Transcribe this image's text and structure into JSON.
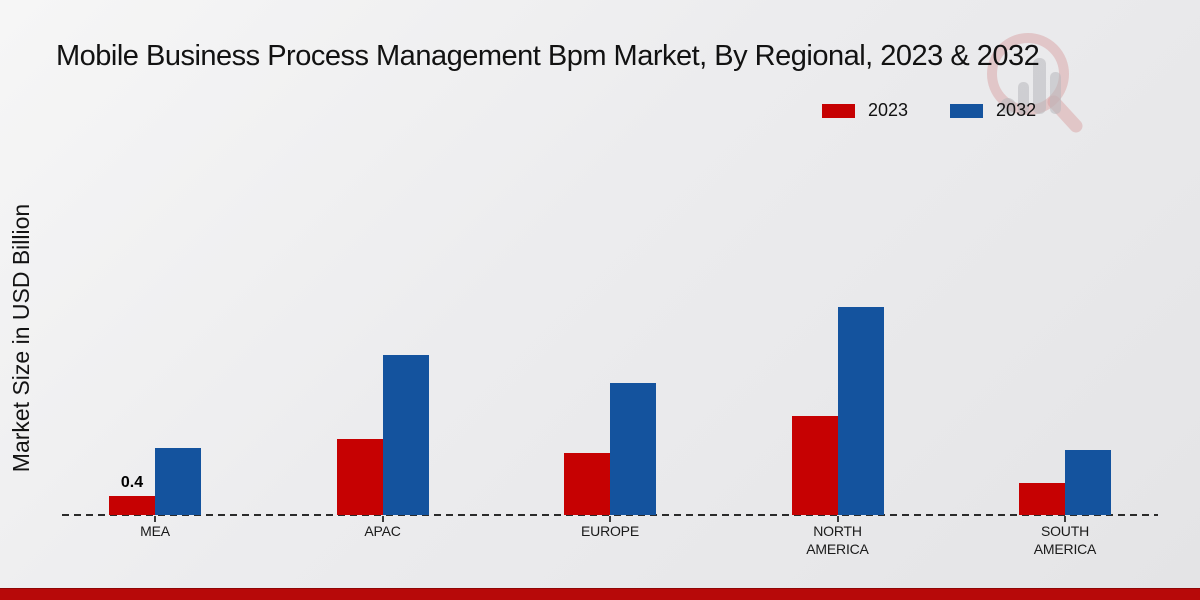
{
  "title": "Mobile Business Process Management Bpm Market, By Regional, 2023 & 2032",
  "y_axis_label": "Market Size in USD Billion",
  "legend": [
    {
      "label": "2023",
      "color": "#c60102"
    },
    {
      "label": "2032",
      "color": "#14539e"
    }
  ],
  "watermark_icon": "magnifier-bar-chart-logo",
  "footer": {
    "strip_color": "#b70909"
  },
  "chart_data": {
    "type": "bar",
    "categories": [
      "MEA",
      "APAC",
      "EUROPE",
      "NORTH AMERICA",
      "SOUTH AMERICA"
    ],
    "series": [
      {
        "name": "2023",
        "color": "#c60102",
        "values": [
          0.4,
          1.65,
          1.35,
          2.15,
          0.7
        ]
      },
      {
        "name": "2032",
        "color": "#14539e",
        "values": [
          1.45,
          3.45,
          2.85,
          4.5,
          1.4
        ]
      }
    ],
    "data_labels": {
      "series": "2023",
      "values": [
        "0.4",
        "",
        "",
        "",
        ""
      ]
    },
    "title": "Mobile Business Process Management Bpm Market, By Regional, 2023 & 2032",
    "xlabel": "",
    "ylabel": "Market Size in USD Billion",
    "ylim": [
      0,
      5
    ],
    "grid": false,
    "axis_style": "dashed-baseline-only",
    "legend_position": "top-right"
  }
}
